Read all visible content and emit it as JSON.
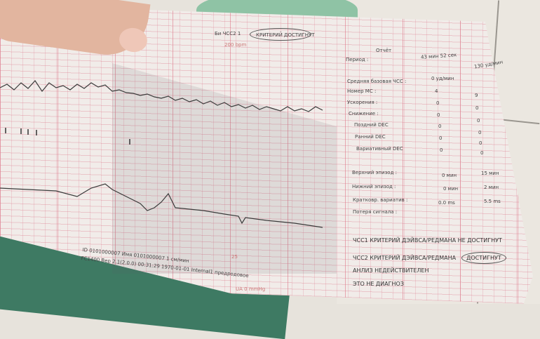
{
  "printout": {
    "header": {
      "prefix": "Би ЧСС2 1",
      "circled": "КРИТЕРИЙ ДОСТИГНУТ",
      "scale": "200 bpm"
    },
    "report": {
      "title": "Отчёт",
      "period_label": "Период :",
      "period_value": "43 мин  52 сек",
      "rows": [
        {
          "label": "Средняя базовая ЧСС :",
          "v1": "0 уд/мин",
          "v2": "130 уд/мин"
        },
        {
          "label": "Номер МС :",
          "v1": "4",
          "v2": "9"
        },
        {
          "label": "Ускорения :",
          "v1": "0",
          "v2": "0"
        },
        {
          "label": "Снижение :",
          "v1": "0",
          "v2": "0"
        },
        {
          "label": "Поздний DEC",
          "v1": "0",
          "v2": "0"
        },
        {
          "label": "Ранний DEC",
          "v1": "0",
          "v2": "0"
        },
        {
          "label": "Вариативный DEC",
          "v1": "0",
          "v2": "0"
        },
        {
          "label": "Верхний эпизод :",
          "v1": "0 мин",
          "v2": "15 мин"
        },
        {
          "label": "Нижний эпизод :",
          "v1": "0 мин",
          "v2": "2 мин"
        },
        {
          "label": "Кратковр. вариатив :",
          "v1": "0.0 ms",
          "v2": "5.5 ms"
        },
        {
          "label": "Потеря сигнала :",
          "v1": "",
          "v2": ""
        }
      ],
      "criteria1": "ЧСС1 КРИТЕРИЙ ДЭЙВСА/РЕДМАНА НЕ ДОСТИГНУТ",
      "criteria2_prefix": "ЧСС2 КРИТЕРИЙ ДЭЙВСА/РЕДМАНА",
      "criteria2_circled": "ДОСТИГНУТ",
      "invalid": "АНЛИЗ НЕДЕЙСТВИТЕЛЕН",
      "not_diagnosis": "ЭТО НЕ ДИАГНОЗ"
    },
    "footer": {
      "line1": "ID  0101000007   Имя  0101000007   1 см/мин",
      "line2": "FC1400   Вер 2.1(2.0.0)  00:31:29  1970-01-01   Internal1   предродовое",
      "ua_scale": "UA 0 mmHg",
      "ua_mark": "25"
    },
    "colors": {
      "paper": "#f1ece9",
      "grid": "#dc7890",
      "trace": "#3a3a3a",
      "fabric": "#3e7a63"
    }
  }
}
